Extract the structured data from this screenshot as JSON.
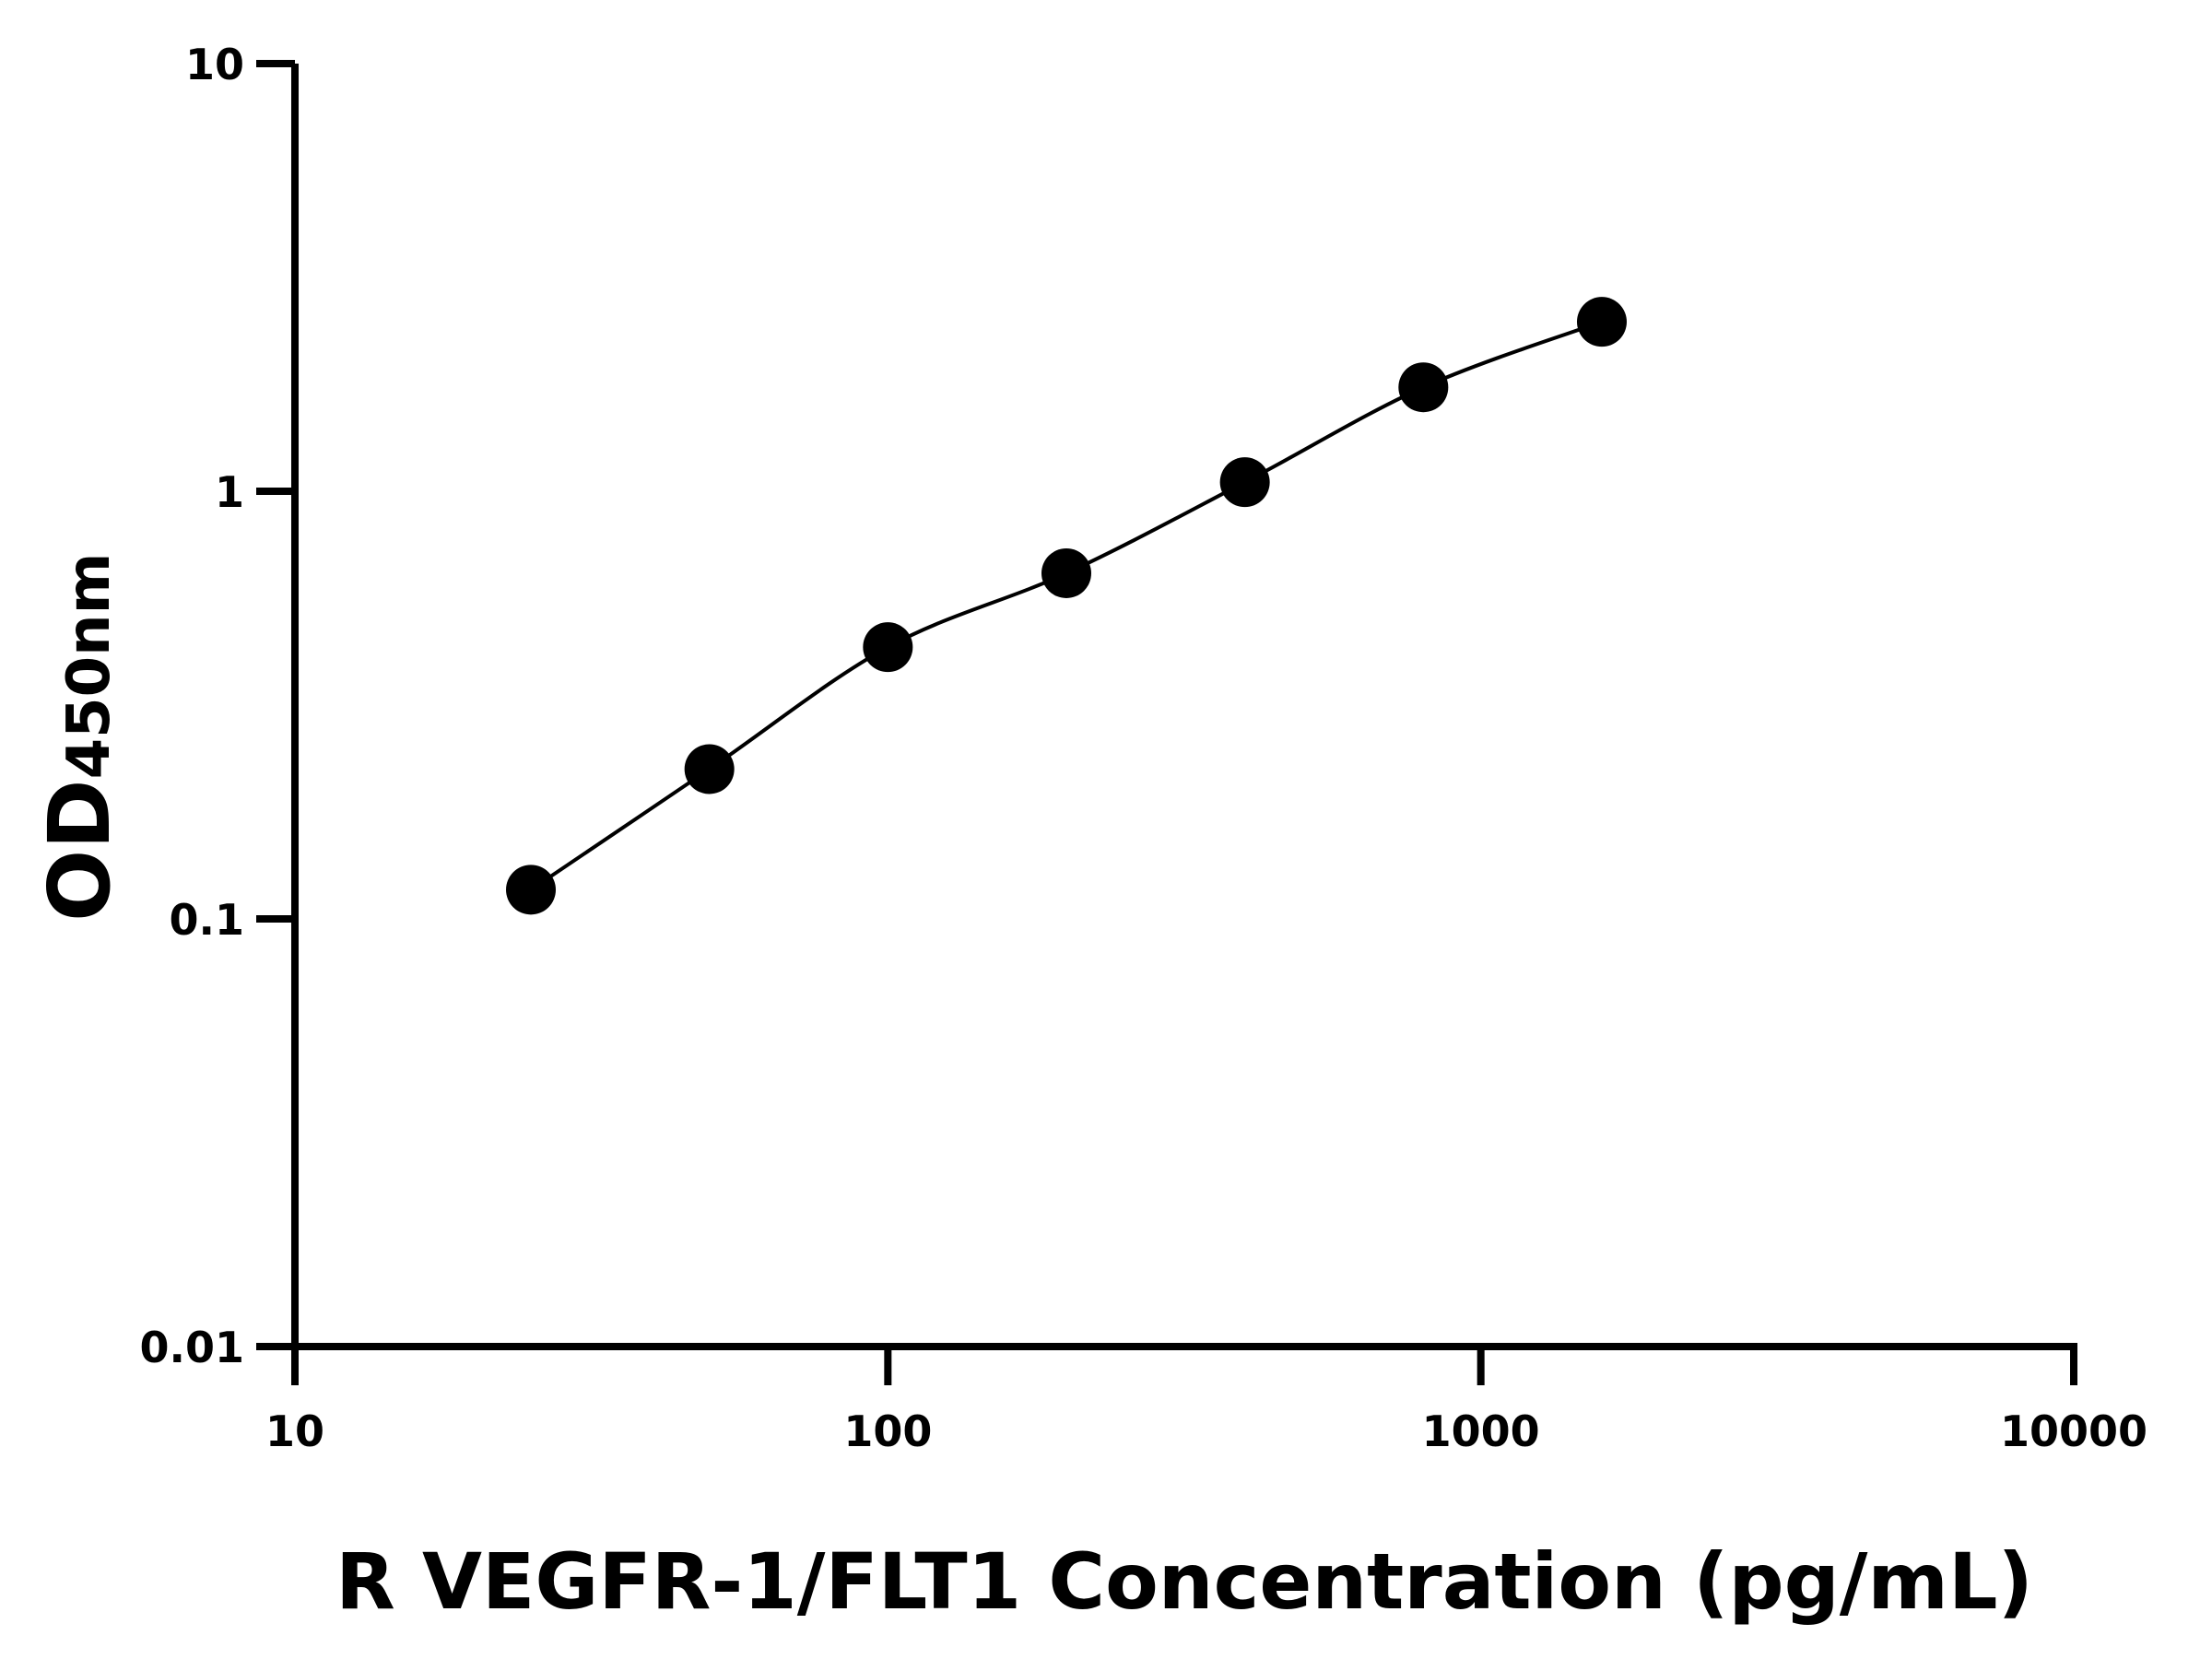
{
  "chart_data": {
    "type": "scatter",
    "xlabel": "R VEGFR-1/FLT1 Concentration (pg/mL)",
    "ylabel_main": "OD",
    "ylabel_sub": "450nm",
    "xscale": "log",
    "yscale": "log",
    "xlim": [
      10,
      10000
    ],
    "ylim": [
      0.01,
      10
    ],
    "xticks": [
      "10",
      "100",
      "1000",
      "10000"
    ],
    "yticks": [
      "0.01",
      "0.1",
      "1",
      "10"
    ],
    "grid": false,
    "x": [
      25,
      50,
      100,
      200,
      400,
      800,
      1600
    ],
    "y": [
      0.117,
      0.224,
      0.432,
      0.643,
      1.05,
      1.75,
      2.49
    ],
    "fit_line": true,
    "marker_color": "#000000",
    "line_color": "#000000"
  }
}
